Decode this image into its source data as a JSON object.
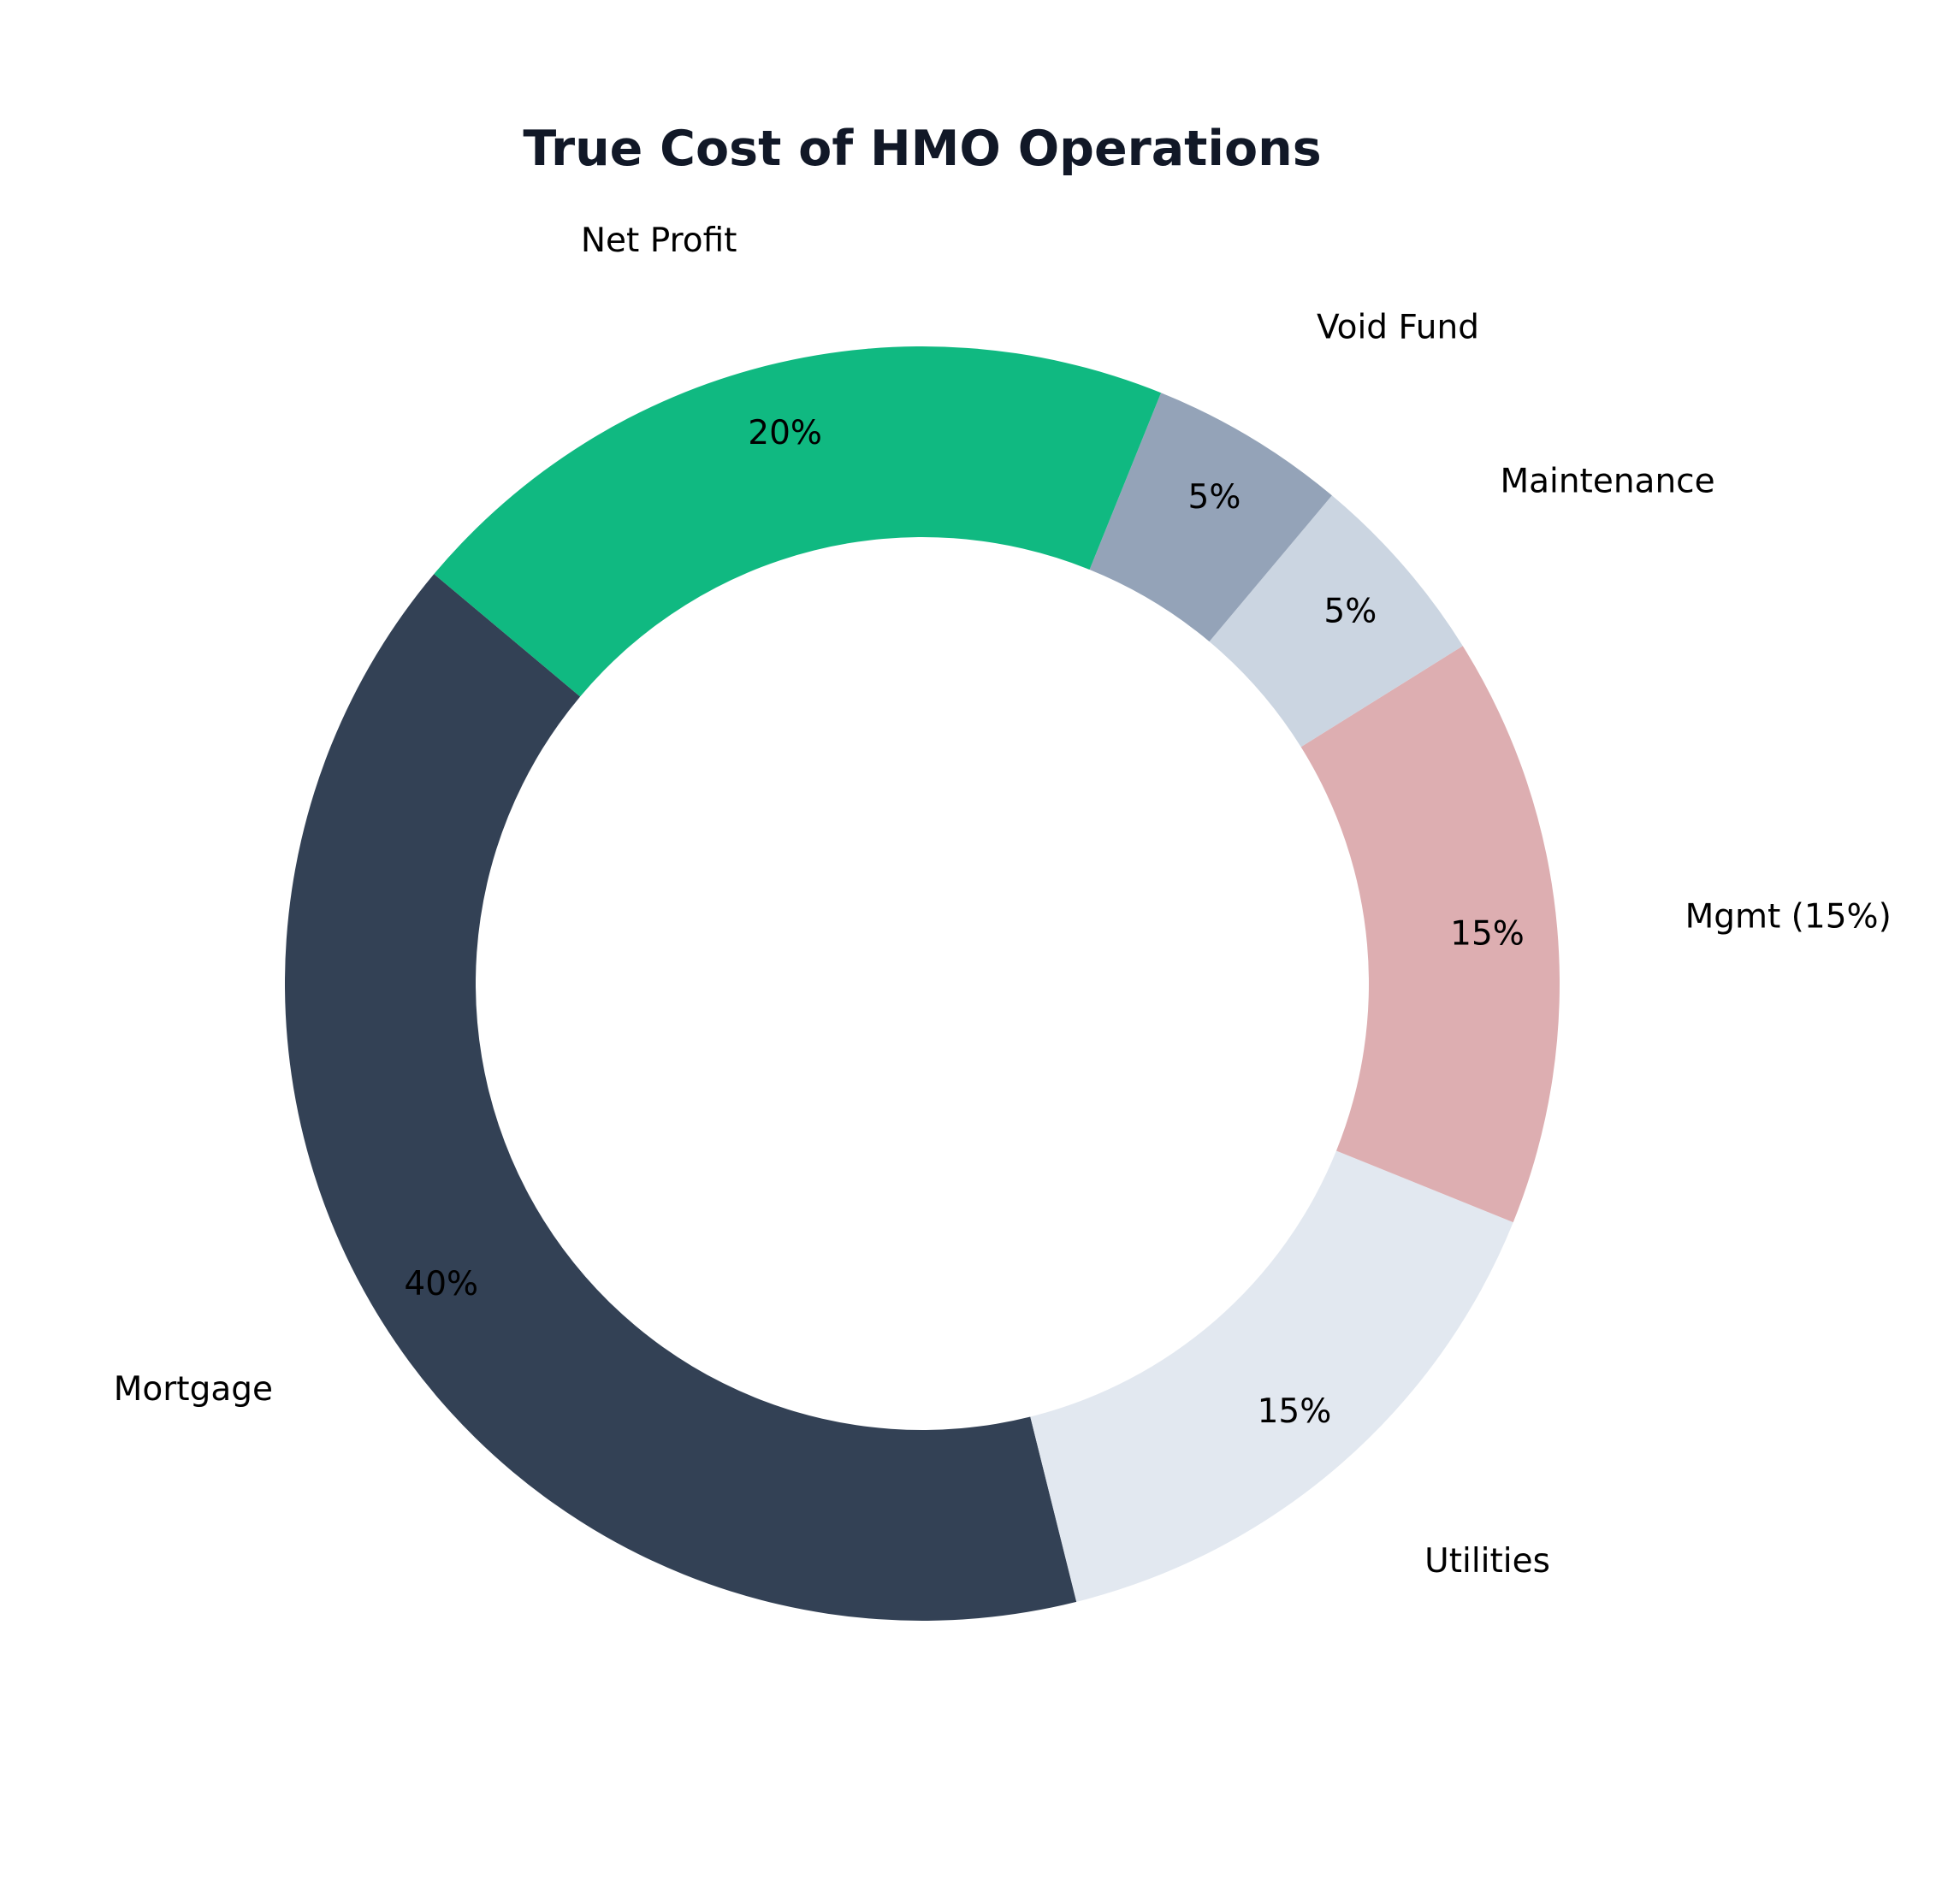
{
  "chart_data": {
    "type": "pie",
    "title": "True Cost of HMO Operations",
    "donut": true,
    "start_angle_deg": 140,
    "direction": "counterclockwise",
    "slices": [
      {
        "label": "Mortgage",
        "value": 40,
        "pct_label": "40%",
        "color": "#334155"
      },
      {
        "label": "Utilities",
        "value": 15,
        "pct_label": "15%",
        "color": "#e2e8f0"
      },
      {
        "label": "Mgmt (15%)",
        "value": 15,
        "pct_label": "15%",
        "color": "#ddaeb1"
      },
      {
        "label": "Maintenance",
        "value": 5,
        "pct_label": "5%",
        "color": "#cbd5e1"
      },
      {
        "label": "Void Fund",
        "value": 5,
        "pct_label": "5%",
        "color": "#94a3b8"
      },
      {
        "label": "Net Profit",
        "value": 20,
        "pct_label": "20%",
        "color": "#10b981"
      }
    ]
  }
}
